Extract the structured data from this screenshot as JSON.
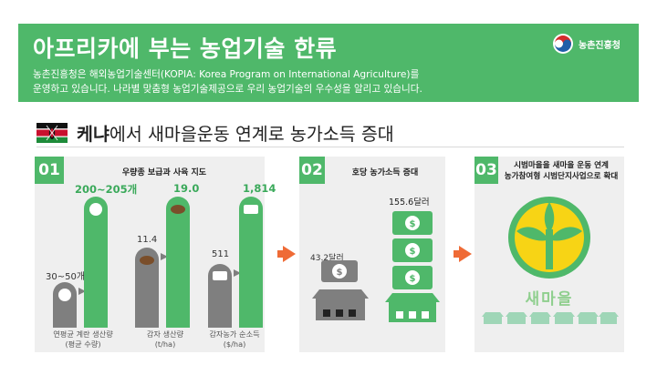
{
  "header": {
    "title": "아프리카에 부는 농업기술 한류",
    "desc_line1": "농촌진흥청은 해외농업기술센터(KOPIA: Korea Program on International Agriculture)를",
    "desc_line2": "운영하고 있습니다. 나라별 맞춤형 농업기술제공으로 우리 농업기술의 우수성을 알리고 있습니다.",
    "org_name": "농촌진흥청"
  },
  "subtitle": {
    "country": "케냐",
    "rest": "에서 새마을운동 연계로 농가소득 증대"
  },
  "panel1": {
    "num": "01",
    "title": "우량종 보급과 사육 지도",
    "groups": [
      {
        "before_label": "30~50개",
        "after_label": "200~205개",
        "before": 30,
        "after": 200,
        "axis_line1": "연평균 계란 생산량",
        "axis_line2": "(평균 수량)"
      },
      {
        "before_label": "11.4",
        "after_label": "19.0",
        "before": 11.4,
        "after": 19.0,
        "axis_line1": "감자 생산량",
        "axis_line2": "(t/ha)"
      },
      {
        "before_label": "511",
        "after_label": "1,814",
        "before": 511,
        "after": 1814,
        "axis_line1": "감자농가 순소득",
        "axis_line2": "($/ha)"
      }
    ]
  },
  "panel2": {
    "num": "02",
    "title": "호당 농가소득 증대",
    "before_label": "43.2달러",
    "after_label": "155.6달러",
    "before": 43.2,
    "after": 155.6
  },
  "panel3": {
    "num": "03",
    "title_line1": "시범마을을 새마을 운동 연계",
    "title_line2": "농가참여형 시범단지사업으로 확대",
    "emblem_text": "새마을"
  },
  "colors": {
    "green": "#4fb86a",
    "bar_gray": "#7f7f7f",
    "arrow": "#ef6b36",
    "panel": "#efefef",
    "emblem_yellow": "#f7d415"
  }
}
